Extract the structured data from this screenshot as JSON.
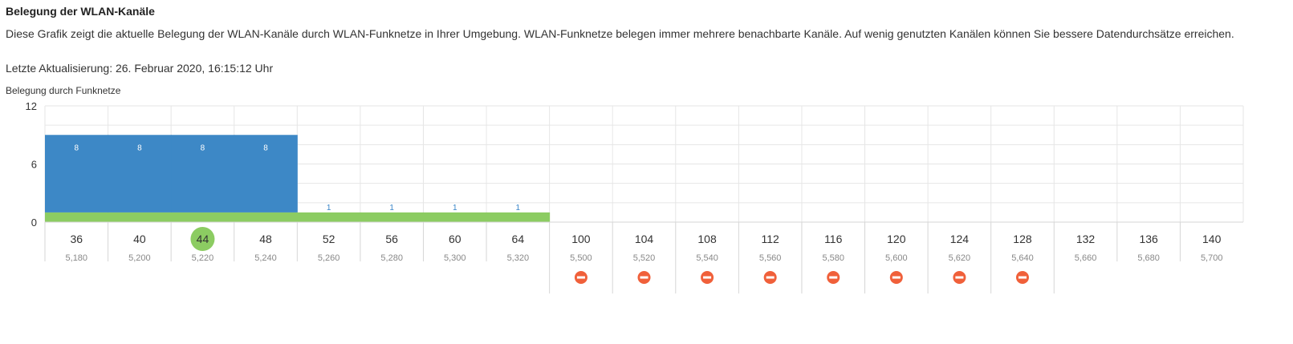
{
  "header": {
    "title": "Belegung der WLAN-Kanäle",
    "description": "Diese Grafik zeigt die aktuelle Belegung der WLAN-Kanäle durch WLAN-Funknetze in Ihrer Umgebung. WLAN-Funknetze belegen immer mehrere benachbarte Kanäle. Auf wenig genutzten Kanälen können Sie bessere Datendurchsätze erreichen.",
    "last_update": "Letzte Aktualisierung: 26. Februar 2020, 16:15:12 Uhr"
  },
  "chart_data": {
    "type": "bar",
    "title": "Belegung durch Funknetze",
    "yticks": [
      "0",
      "6",
      "12"
    ],
    "ylim": [
      0,
      12
    ],
    "grid": true,
    "categories": [
      "36",
      "40",
      "44",
      "48",
      "52",
      "56",
      "60",
      "64",
      "100",
      "104",
      "108",
      "112",
      "116",
      "120",
      "124",
      "128",
      "132",
      "136",
      "140"
    ],
    "frequencies": [
      "5,180",
      "5,200",
      "5,220",
      "5,240",
      "5,260",
      "5,280",
      "5,300",
      "5,320",
      "5,500",
      "5,520",
      "5,540",
      "5,560",
      "5,580",
      "5,600",
      "5,620",
      "5,640",
      "5,660",
      "5,680",
      "5,700"
    ],
    "series": [
      {
        "color": "#3d88c6",
        "values": [
          8,
          8,
          8,
          8,
          0,
          0,
          0,
          0,
          0,
          0,
          0,
          0,
          0,
          0,
          0,
          0,
          0,
          0,
          0
        ]
      },
      {
        "color": "#8ccc62",
        "values": [
          1,
          1,
          1,
          1,
          1,
          1,
          1,
          1,
          0,
          0,
          0,
          0,
          0,
          0,
          0,
          0,
          0,
          0,
          0
        ]
      }
    ],
    "data_labels": [
      "8",
      "8",
      "8",
      "8",
      "1",
      "1",
      "1",
      "1",
      "",
      "",
      "",
      "",
      "",
      "",
      "",
      "",
      "",
      "",
      ""
    ],
    "active_channel": "44",
    "blocked_channels": [
      "100",
      "104",
      "108",
      "112",
      "116",
      "120",
      "124",
      "128"
    ],
    "colors": {
      "active": "#8ccc62",
      "blocked": "#f0603a",
      "grid": "#e6e6e6"
    }
  }
}
